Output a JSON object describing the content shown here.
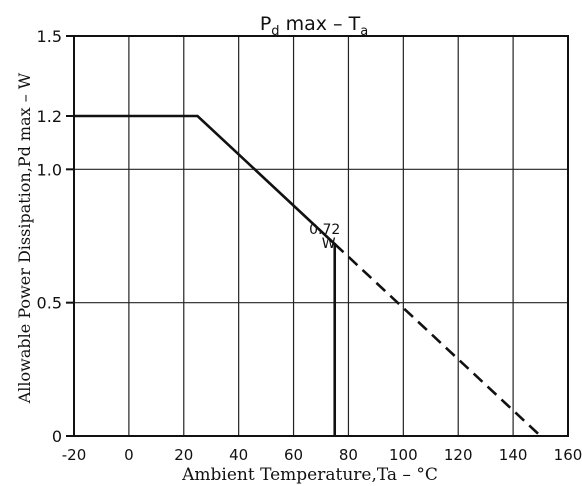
{
  "chart_data": {
    "type": "line",
    "title_main": "P",
    "title_sub": "d",
    "title_rest": " max   –   T",
    "title_sub2": "a",
    "xlabel": "Ambient Temperature,Ta – °C",
    "ylabel": "Allowable Power Dissipation,Pd max – W",
    "xlim": [
      -20,
      160
    ],
    "ylim": [
      0,
      1.5
    ],
    "x_ticks": [
      -20,
      0,
      20,
      40,
      60,
      80,
      100,
      120,
      140,
      160
    ],
    "x_tick_labels": [
      "-20",
      "0",
      "20",
      "40",
      "60",
      "80",
      "100",
      "120",
      "140",
      "160"
    ],
    "y_ticks": [
      0,
      0.5,
      1.0,
      1.2,
      1.5
    ],
    "y_tick_labels": [
      "0",
      "0.5",
      "1.0",
      "1.2",
      "1.5"
    ],
    "grid": true,
    "series": [
      {
        "style": "solid",
        "points": [
          [
            -20,
            1.2
          ],
          [
            25,
            1.2
          ],
          [
            75,
            0.72
          ],
          [
            75,
            0
          ]
        ]
      },
      {
        "style": "dashed",
        "points": [
          [
            75,
            0.72
          ],
          [
            150,
            0
          ]
        ]
      }
    ],
    "annotations": [
      {
        "text_line1": "0.72",
        "text_line2": "W",
        "x": 75,
        "y": 0.72
      }
    ]
  }
}
